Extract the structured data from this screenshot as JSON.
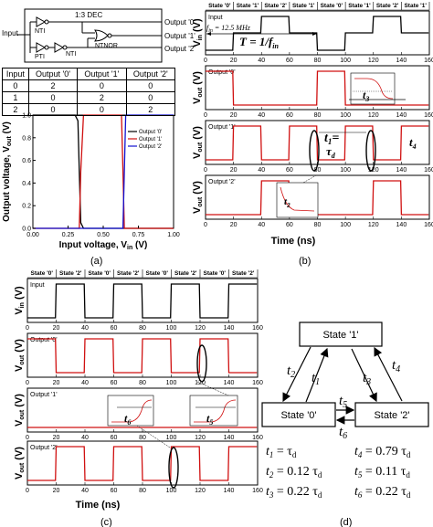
{
  "panel_a": {
    "dec_title": "1:3 DEC",
    "input_label": "Input",
    "gate_nti": "NTI",
    "gate_pti": "PTI",
    "gate_nti2": "NTI",
    "gate_ntnor": "NTNOR",
    "outputs": [
      "Output '0'",
      "Output '1'",
      "Output '2'"
    ],
    "table": {
      "headers": [
        "Input",
        "Output '0'",
        "Output '1'",
        "Output '2'"
      ],
      "rows": [
        [
          "0",
          "2",
          "0",
          "0"
        ],
        [
          "1",
          "0",
          "2",
          "0"
        ],
        [
          "2",
          "0",
          "0",
          "2"
        ]
      ]
    },
    "ylabel": "Output voltage, V",
    "ylabel_sub": "out",
    "ylabel_unit": " (V)",
    "xlabel": "Input voltage, V",
    "xlabel_sub": "in",
    "xlabel_unit": " (V)",
    "legend": [
      "Output '0'",
      "Output '1'",
      "Output '2'"
    ],
    "caption": "(a)"
  },
  "panel_b": {
    "states": [
      "State '0'",
      "State '1'",
      "State '2'",
      "State '1'",
      "State '0'",
      "State '1'",
      "State '2'",
      "State '1'"
    ],
    "freq_label": "f",
    "freq_sub": "in",
    "freq_value": " = 12.5 MHz",
    "period_label": "T = 1/f",
    "period_sub": "in",
    "subplots": [
      "Input",
      "Output '0'",
      "Output '1'",
      "Output '2'"
    ],
    "ylabels": [
      "V",
      "V",
      "V",
      "V"
    ],
    "ysubs": [
      "in",
      "out",
      "out",
      "out"
    ],
    "yunit": " (V)",
    "xlabel": "Time (ns)",
    "t1": "t",
    "t1_sub": "1",
    "t1_eq": "=",
    "tau": "τ",
    "tau_sub": "d",
    "t2": "t",
    "t2_sub": "2",
    "t3": "t",
    "t3_sub": "3",
    "t4": "t",
    "t4_sub": "4",
    "caption": "(b)"
  },
  "panel_c": {
    "states": [
      "State '0'",
      "State '2'",
      "State '0'",
      "State '2'",
      "State '0'",
      "State '2'",
      "State '0'",
      "State '2'"
    ],
    "subplots": [
      "Input",
      "Output '0'",
      "Output '1'",
      "Output '2'"
    ],
    "ylabels": [
      "V",
      "V",
      "V",
      "V"
    ],
    "ysubs": [
      "in",
      "out",
      "out",
      "out"
    ],
    "yunit": " (V)",
    "xlabel": "Time (ns)",
    "t5": "t",
    "t5_sub": "5",
    "t6": "t",
    "t6_sub": "6",
    "caption": "(c)"
  },
  "panel_d": {
    "state1": "State '1'",
    "state0": "State '0'",
    "state2": "State '2'",
    "edge_labels": [
      "t2",
      "t1",
      "t3",
      "t4",
      "t5",
      "t6"
    ],
    "equations": [
      {
        "lhs": "t",
        "sub": "1",
        "rhs": "= τ",
        "rsub": "d"
      },
      {
        "lhs": "t",
        "sub": "2",
        "rhs": "= 0.12 τ",
        "rsub": "d"
      },
      {
        "lhs": "t",
        "sub": "3",
        "rhs": "= 0.22 τ",
        "rsub": "d"
      },
      {
        "lhs": "t",
        "sub": "4",
        "rhs": "= 0.79 τ",
        "rsub": "d"
      },
      {
        "lhs": "t",
        "sub": "5",
        "rhs": "= 0.11 τ",
        "rsub": "d"
      },
      {
        "lhs": "t",
        "sub": "6",
        "rhs": "= 0.22 τ",
        "rsub": "d"
      }
    ],
    "caption": "(d)"
  },
  "chart_data": [
    {
      "type": "line",
      "panel": "a",
      "xlabel": "Input voltage, Vin (V)",
      "ylabel": "Output voltage, Vout (V)",
      "xlim": [
        0,
        1.0
      ],
      "ylim": [
        0,
        1.0
      ],
      "xticks": [
        0.0,
        0.25,
        0.5,
        0.75,
        1.0
      ],
      "yticks": [
        0.0,
        0.2,
        0.4,
        0.6,
        0.8,
        1.0
      ],
      "legend": "top-right",
      "series": [
        {
          "name": "Output '0'",
          "color": "#000000",
          "x": [
            0,
            0.3,
            0.32,
            0.33,
            0.34,
            0.36,
            1.0
          ],
          "y": [
            1.0,
            1.0,
            0.95,
            0.5,
            0.05,
            0.0,
            0.0
          ]
        },
        {
          "name": "Output '1'",
          "color": "#d01010",
          "x": [
            0,
            0.33,
            0.34,
            0.36,
            0.37,
            0.63,
            0.64,
            0.65,
            1.0
          ],
          "y": [
            0,
            0.0,
            0.5,
            1.0,
            1.0,
            1.0,
            0.5,
            0.0,
            0.0
          ]
        },
        {
          "name": "Output '2'",
          "color": "#1010d0",
          "x": [
            0,
            0.64,
            0.65,
            0.66,
            1.0
          ],
          "y": [
            0,
            0.0,
            0.5,
            1.0,
            1.0
          ]
        }
      ]
    }
  ]
}
